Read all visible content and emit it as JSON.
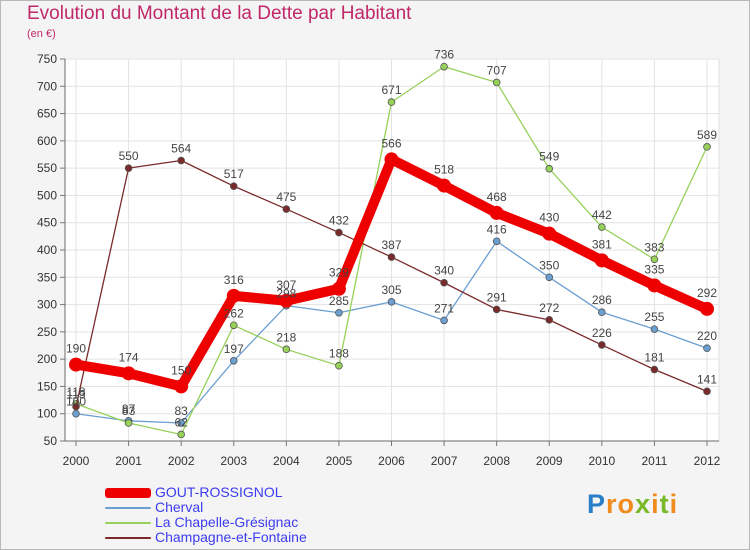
{
  "title": "Evolution du Montant de la Dette par Habitant",
  "subtitle": "(en €)",
  "logo": {
    "text": "Proxiti",
    "letters": [
      "P",
      "r",
      "o",
      "x",
      "i",
      "t",
      "i"
    ],
    "colors": [
      "#2a7fc9",
      "#f08c1e",
      "#f08c1e",
      "#7ab828",
      "#f08c1e",
      "#7ab828",
      "#f08c1e"
    ]
  },
  "chart_data": {
    "type": "line",
    "title": "Evolution du Montant de la Dette par Habitant",
    "ylabel": "(en €)",
    "xlabel": "",
    "x": [
      "2000",
      "2001",
      "2002",
      "2003",
      "2004",
      "2005",
      "2006",
      "2007",
      "2008",
      "2009",
      "2010",
      "2011",
      "2012"
    ],
    "ylim": [
      50,
      750
    ],
    "yticks": [
      50,
      100,
      150,
      200,
      250,
      300,
      350,
      400,
      450,
      500,
      550,
      600,
      650,
      700,
      750
    ],
    "grid": true,
    "legend": "bottom-left",
    "series": [
      {
        "name": "GOUT-ROSSIGNOL",
        "color": "#ee0000",
        "width": "thick",
        "values": [
          190,
          174,
          150,
          316,
          307,
          329,
          566,
          518,
          468,
          430,
          381,
          335,
          292
        ]
      },
      {
        "name": "Cherval",
        "color": "#6b9fd0",
        "width": "thin",
        "values": [
          100,
          87,
          83,
          197,
          298,
          285,
          305,
          271,
          416,
          350,
          286,
          255,
          220
        ]
      },
      {
        "name": "La Chapelle-Grésignac",
        "color": "#96d15a",
        "width": "thin",
        "values": [
          118,
          83,
          62,
          262,
          218,
          188,
          671,
          736,
          707,
          549,
          442,
          383,
          589
        ]
      },
      {
        "name": "Champagne-et-Fontaine",
        "color": "#7a2a2a",
        "width": "thin",
        "values": [
          113,
          550,
          564,
          517,
          475,
          432,
          387,
          340,
          291,
          272,
          226,
          181,
          141
        ]
      }
    ]
  }
}
